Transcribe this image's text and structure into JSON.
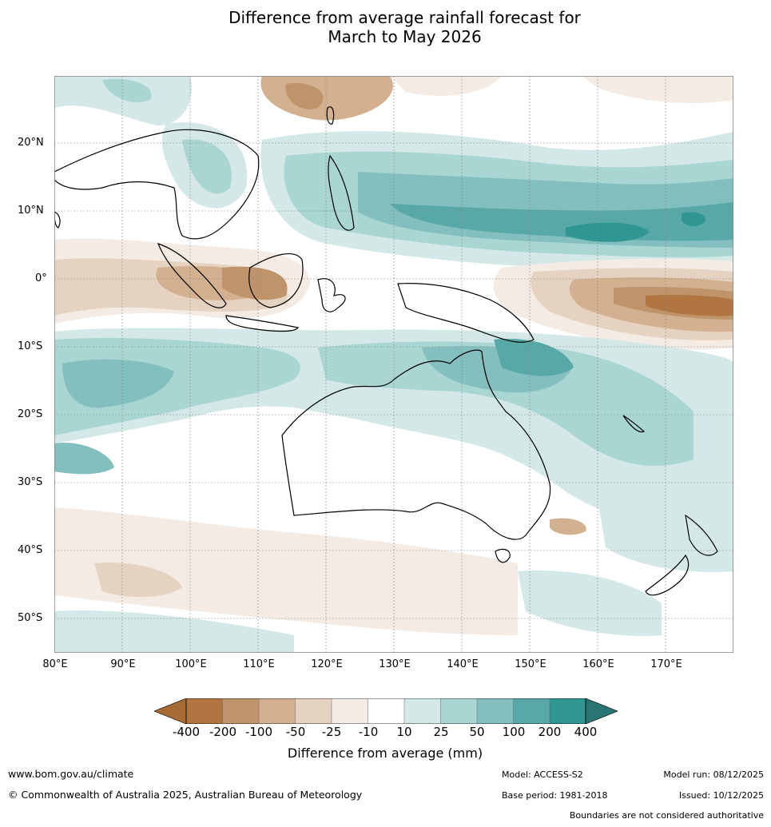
{
  "title_line1": "Difference from average rainfall forecast for",
  "title_line2": "March to May 2026",
  "lat_labels": [
    "20°N",
    "10°N",
    "0°",
    "10°S",
    "20°S",
    "30°S",
    "40°S",
    "50°S"
  ],
  "lon_labels": [
    "80°E",
    "90°E",
    "100°E",
    "110°E",
    "120°E",
    "130°E",
    "140°E",
    "150°E",
    "160°E",
    "170°E"
  ],
  "colorbar": {
    "labels": [
      "-400",
      "-200",
      "-100",
      "-50",
      "-25",
      "-10",
      "10",
      "25",
      "50",
      "100",
      "200",
      "400"
    ],
    "colors": [
      "#a66a34",
      "#b07540",
      "#c0946a",
      "#d3b08f",
      "#e6d2c0",
      "#f4ebe5",
      "#ffffff",
      "#d4e9e7",
      "#a9d5d3",
      "#82bfbe",
      "#58a8a7",
      "#2f9693",
      "#297574"
    ],
    "title": "Difference from average (mm)"
  },
  "footer": {
    "url": "www.bom.gov.au/climate",
    "copyright": "© Commonwealth of Australia 2025, Australian Bureau of Meteorology",
    "model": "Model: ACCESS-S2",
    "base_period": "Base period: 1981-2018",
    "model_run": "Model run: 08/12/2025",
    "issued": "Issued: 10/12/2025",
    "disclaimer": "Boundaries are not considered authoritative"
  }
}
